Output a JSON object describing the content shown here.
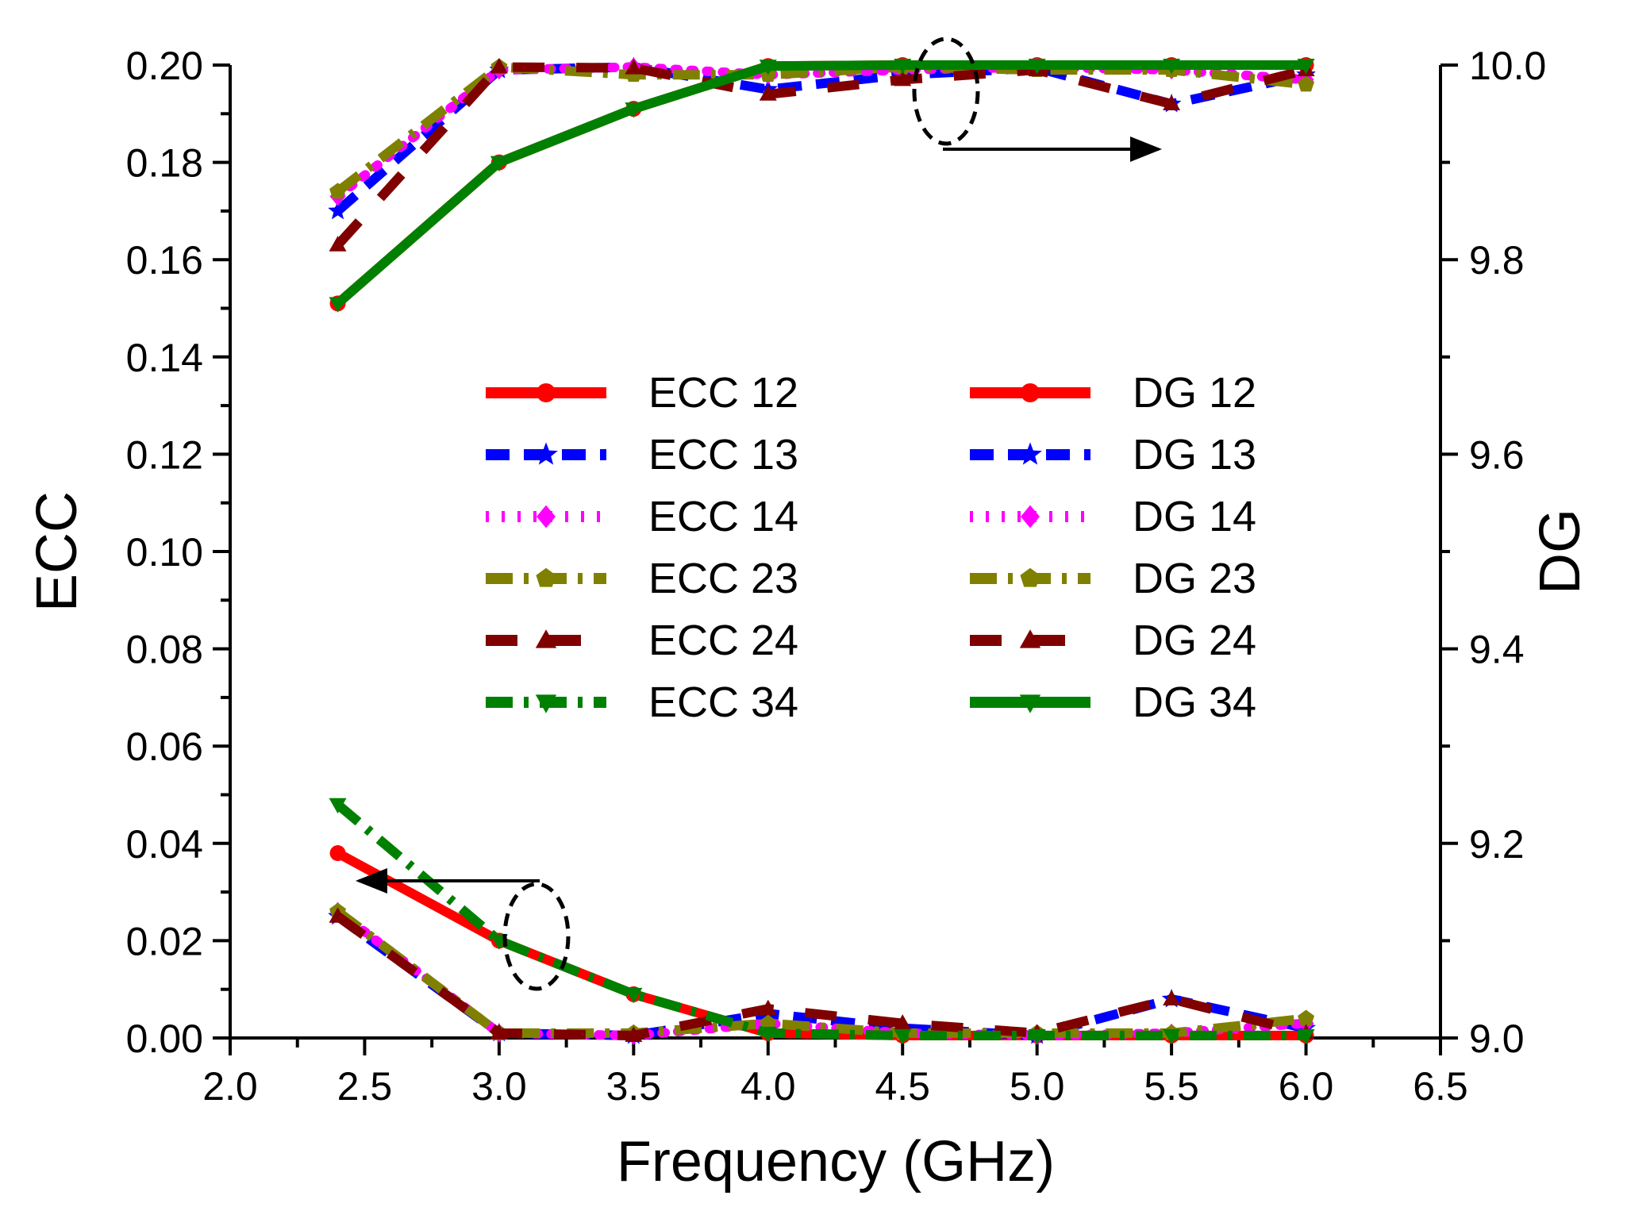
{
  "chart_data": {
    "type": "line",
    "xlabel": "Frequency (GHz)",
    "ylabel_left": "ECC",
    "ylabel_right": "DG",
    "xlim": [
      2.0,
      6.5
    ],
    "ylim_left": [
      0.0,
      0.2
    ],
    "ylim_right": [
      9.0,
      10.0
    ],
    "x_ticks": [
      "2.0",
      "2.5",
      "3.0",
      "3.5",
      "4.0",
      "4.5",
      "5.0",
      "5.5",
      "6.0",
      "6.5"
    ],
    "y_left_ticks": [
      "0.00",
      "0.02",
      "0.04",
      "0.06",
      "0.08",
      "0.10",
      "0.12",
      "0.14",
      "0.16",
      "0.18",
      "0.20"
    ],
    "y_right_ticks": [
      "9.0",
      "9.2",
      "9.4",
      "9.6",
      "9.8",
      "10.0"
    ],
    "x": [
      2.4,
      3.0,
      3.5,
      4.0,
      4.5,
      5.0,
      5.5,
      6.0
    ],
    "series": [
      {
        "name": "ECC 12",
        "axis": "left",
        "color": "#ff0000",
        "marker": "circle",
        "dash": "solid",
        "values": [
          0.038,
          0.02,
          0.009,
          0.001,
          0.0005,
          0.0005,
          0.0005,
          0.0005
        ]
      },
      {
        "name": "ECC 13",
        "axis": "left",
        "color": "#0000ff",
        "marker": "star",
        "dash": "dash",
        "values": [
          0.025,
          0.001,
          0.0005,
          0.005,
          0.002,
          0.0005,
          0.008,
          0.002
        ]
      },
      {
        "name": "ECC 14",
        "axis": "left",
        "color": "#ff00ff",
        "marker": "diamond",
        "dash": "dot",
        "values": [
          0.026,
          0.001,
          0.0005,
          0.003,
          0.001,
          0.0005,
          0.001,
          0.003
        ]
      },
      {
        "name": "ECC 23",
        "axis": "left",
        "color": "#808000",
        "marker": "pentagon",
        "dash": "dashdot",
        "values": [
          0.026,
          0.001,
          0.001,
          0.003,
          0.001,
          0.001,
          0.001,
          0.004
        ]
      },
      {
        "name": "ECC 24",
        "axis": "left",
        "color": "#800000",
        "marker": "triangle-up",
        "dash": "shortdash",
        "values": [
          0.025,
          0.001,
          0.0005,
          0.006,
          0.003,
          0.001,
          0.008,
          0.001
        ]
      },
      {
        "name": "ECC 34",
        "axis": "left",
        "color": "#008000",
        "marker": "triangle-down",
        "dash": "dashdot",
        "values": [
          0.048,
          0.02,
          0.009,
          0.001,
          0.0005,
          0.0005,
          0.0005,
          0.0005
        ]
      },
      {
        "name": "DG 12",
        "axis": "right",
        "color": "#ff0000",
        "marker": "circle",
        "dash": "solid",
        "values": [
          9.755,
          9.9,
          9.955,
          9.999,
          10.0,
          10.0,
          10.0,
          10.0
        ]
      },
      {
        "name": "DG 13",
        "axis": "right",
        "color": "#0000ff",
        "marker": "star",
        "dash": "dash",
        "values": [
          9.85,
          9.995,
          9.998,
          9.975,
          9.99,
          9.997,
          9.96,
          9.99
        ]
      },
      {
        "name": "DG 14",
        "axis": "right",
        "color": "#ff00ff",
        "marker": "diamond",
        "dash": "dot",
        "values": [
          9.865,
          9.995,
          9.998,
          9.99,
          9.995,
          9.998,
          9.995,
          9.985
        ]
      },
      {
        "name": "DG 23",
        "axis": "right",
        "color": "#808000",
        "marker": "pentagon",
        "dash": "dashdot",
        "values": [
          9.87,
          9.998,
          9.99,
          9.99,
          9.998,
          9.995,
          9.995,
          9.98
        ]
      },
      {
        "name": "DG 24",
        "axis": "right",
        "color": "#800000",
        "marker": "triangle-up",
        "dash": "shortdash",
        "values": [
          9.815,
          9.998,
          9.997,
          9.97,
          9.985,
          9.995,
          9.96,
          9.995
        ]
      },
      {
        "name": "DG 34",
        "axis": "right",
        "color": "#008000",
        "marker": "triangle-down",
        "dash": "solid",
        "values": [
          9.755,
          9.9,
          9.955,
          9.999,
          10.0,
          10.0,
          10.0,
          10.0
        ]
      }
    ],
    "legend_position": "center",
    "annotations": [
      {
        "kind": "dashed-ellipse-with-arrow",
        "arrow_direction": "right",
        "points_to_axis": "DG"
      },
      {
        "kind": "dashed-ellipse-with-arrow",
        "arrow_direction": "left",
        "points_to_axis": "ECC"
      }
    ]
  }
}
